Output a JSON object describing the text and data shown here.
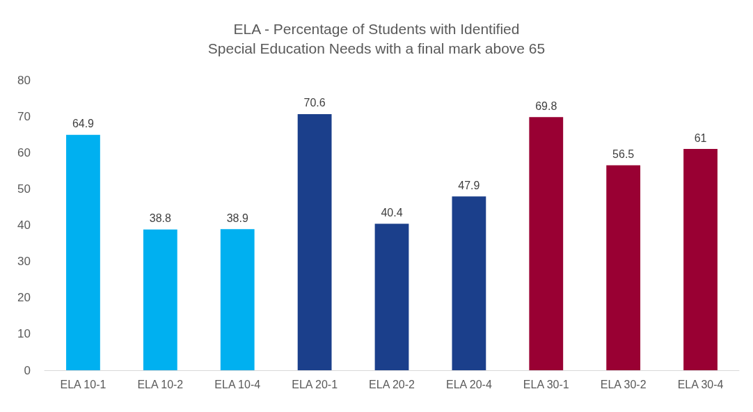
{
  "chart_data": {
    "type": "bar",
    "title": "ELA - Percentage of Students with Identified\nSpecial Education Needs with a final mark above 65",
    "categories": [
      "ELA 10-1",
      "ELA 10-2",
      "ELA 10-4",
      "ELA 20-1",
      "ELA 20-2",
      "ELA 20-4",
      "ELA 30-1",
      "ELA 30-2",
      "ELA 30-4"
    ],
    "values": [
      64.9,
      38.8,
      38.9,
      70.6,
      40.4,
      47.9,
      69.8,
      56.5,
      61
    ],
    "colors": [
      "#00b0f0",
      "#00b0f0",
      "#00b0f0",
      "#1b3f8b",
      "#1b3f8b",
      "#1b3f8b",
      "#990033",
      "#990033",
      "#990033"
    ],
    "ylim": [
      0,
      80
    ],
    "yticks": [
      0,
      10,
      20,
      30,
      40,
      50,
      60,
      70,
      80
    ],
    "data_labels": true
  }
}
